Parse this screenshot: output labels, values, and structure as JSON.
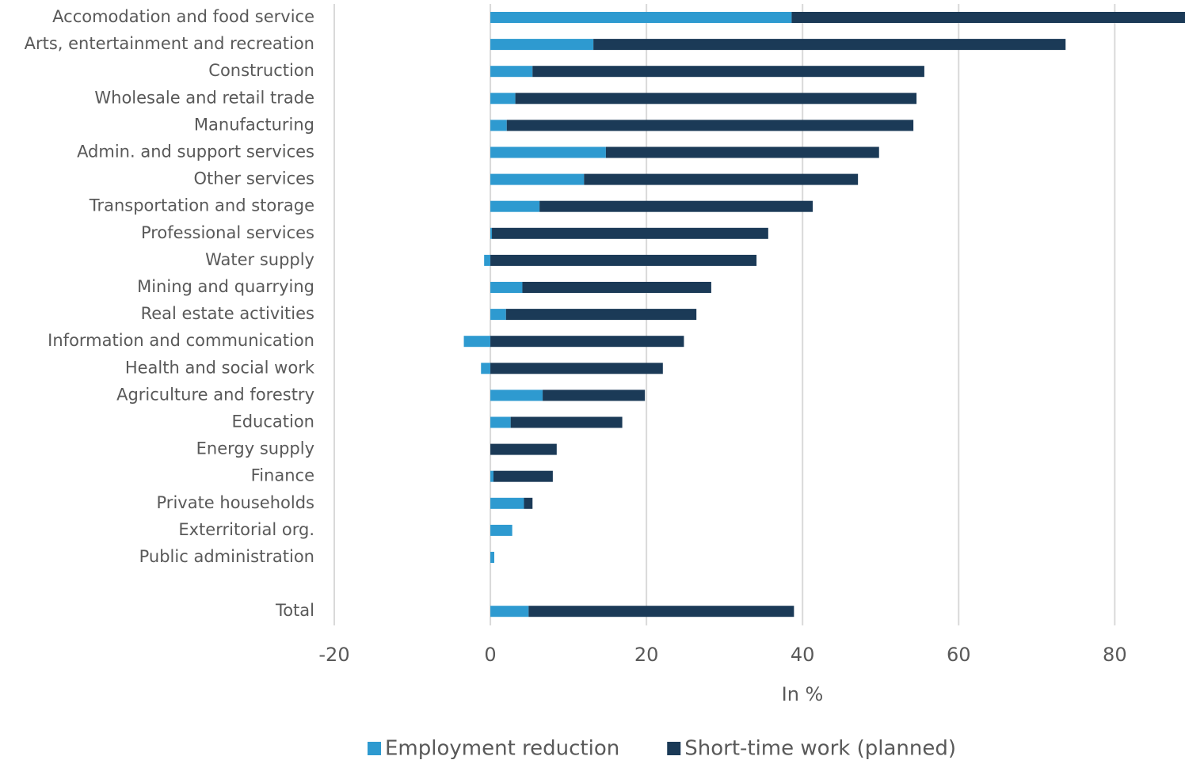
{
  "chart_data": {
    "type": "bar",
    "orientation": "horizontal",
    "stacked": true,
    "categories": [
      "Accomodation and food service",
      "Arts, entertainment and recreation",
      "Construction",
      "Wholesale and retail trade",
      "Manufacturing",
      "Admin. and support services",
      "Other services",
      "Transportation and storage",
      "Professional services",
      "Water supply",
      "Mining and quarrying",
      "Real estate activities",
      "Information and communication",
      "Health and social work",
      "Agriculture and forestry",
      "Education",
      "Energy supply",
      "Finance",
      "Private households",
      "Exterritorial org.",
      "Public administration",
      null,
      "Total"
    ],
    "series": [
      {
        "name": "Employment reduction",
        "color": "#2e9ad0",
        "values": [
          38.6,
          13.2,
          5.4,
          3.2,
          2.1,
          14.8,
          12.0,
          6.3,
          0.2,
          -0.8,
          4.1,
          2.0,
          -3.4,
          -1.2,
          6.7,
          2.6,
          0,
          0.4,
          4.3,
          2.8,
          0.5,
          null,
          4.9
        ]
      },
      {
        "name": "Short-time work (planned)",
        "color": "#1b3a57",
        "values": [
          51.0,
          60.5,
          50.2,
          51.4,
          52.1,
          35.0,
          35.1,
          35.0,
          35.4,
          34.1,
          24.2,
          24.4,
          24.8,
          22.1,
          13.1,
          14.3,
          8.5,
          7.6,
          1.1,
          0,
          0,
          null,
          34.0
        ]
      }
    ],
    "xlabel": "In %",
    "xlim": [
      -20,
      89
    ],
    "xticks": [
      -20,
      0,
      20,
      40,
      60,
      80
    ],
    "grid": true,
    "legend": "bottom"
  }
}
